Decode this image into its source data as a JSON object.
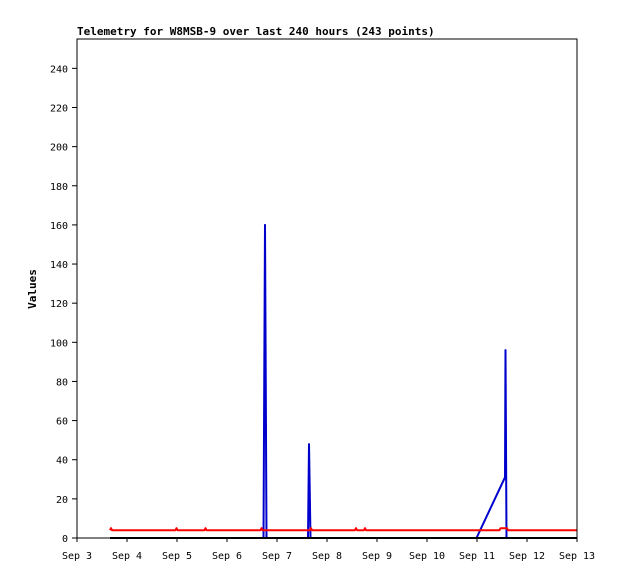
{
  "chart_data": {
    "type": "line",
    "title": "Telemetry for W8MSB-9 over last 240 hours (243 points)",
    "xlabel": "",
    "ylabel": "Values",
    "xlim": [
      "Sep 3",
      "Sep 13"
    ],
    "ylim": [
      0,
      255
    ],
    "grid": false,
    "legend": "none",
    "y_ticks": [
      0,
      20,
      40,
      60,
      80,
      100,
      120,
      140,
      160,
      180,
      200,
      220,
      240
    ],
    "x_ticks": [
      "Sep 3",
      "Sep 4",
      "Sep 5",
      "Sep 6",
      "Sep 7",
      "Sep 8",
      "Sep 9",
      "Sep 10",
      "Sep 11",
      "Sep 12",
      "Sep 13"
    ],
    "series": [
      {
        "color": "#0000cc",
        "points": [
          [
            0.66,
            0
          ],
          [
            3.73,
            0
          ],
          [
            3.76,
            160
          ],
          [
            3.79,
            0
          ],
          [
            4.62,
            0
          ],
          [
            4.64,
            48
          ],
          [
            4.67,
            0
          ],
          [
            7.99,
            0
          ],
          [
            8.56,
            31
          ],
          [
            8.57,
            96
          ],
          [
            8.59,
            0
          ],
          [
            10,
            0
          ]
        ]
      },
      {
        "color": "#ff0000",
        "points": [
          [
            0.66,
            4
          ],
          [
            0.68,
            5
          ],
          [
            0.7,
            4
          ],
          [
            1.97,
            4
          ],
          [
            1.99,
            5
          ],
          [
            2.01,
            4
          ],
          [
            2.55,
            4
          ],
          [
            2.57,
            5
          ],
          [
            2.59,
            4
          ],
          [
            3.67,
            4
          ],
          [
            3.69,
            5
          ],
          [
            3.71,
            4
          ],
          [
            4.66,
            4
          ],
          [
            4.68,
            5
          ],
          [
            4.7,
            4
          ],
          [
            5.56,
            4
          ],
          [
            5.58,
            5
          ],
          [
            5.6,
            4
          ],
          [
            5.74,
            4
          ],
          [
            5.76,
            5
          ],
          [
            5.78,
            4
          ],
          [
            8.45,
            4
          ],
          [
            8.47,
            5
          ],
          [
            8.6,
            5
          ],
          [
            8.62,
            4
          ],
          [
            10,
            4
          ]
        ]
      },
      {
        "color": "#000000",
        "points": [
          [
            0.66,
            0
          ],
          [
            10,
            0
          ]
        ]
      }
    ]
  }
}
